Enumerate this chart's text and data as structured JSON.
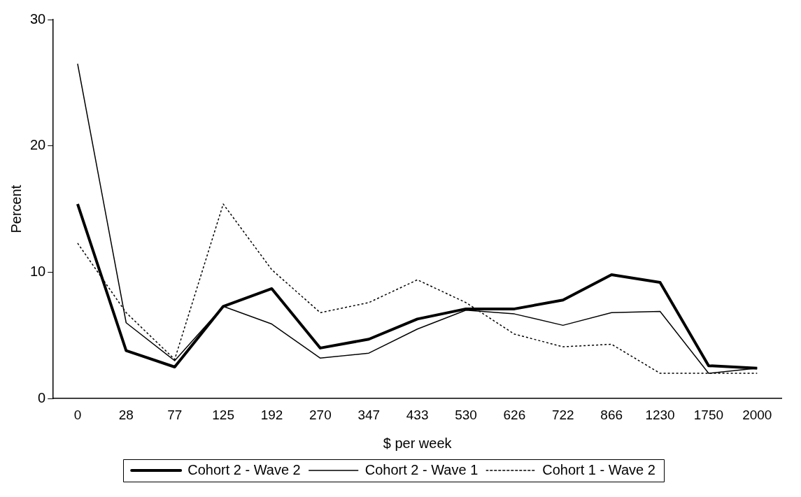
{
  "chart_data": {
    "type": "line",
    "xlabel": "$ per week",
    "ylabel": "Percent",
    "categories": [
      "0",
      "28",
      "77",
      "125",
      "192",
      "270",
      "347",
      "433",
      "530",
      "626",
      "722",
      "866",
      "1230",
      "1750",
      "2000"
    ],
    "ylim": [
      0,
      30
    ],
    "yticks": [
      0,
      10,
      20,
      30
    ],
    "grid": false,
    "legend": "bottom",
    "marker": "none",
    "series": [
      {
        "name": "Cohort 2 - Wave 2",
        "color": "#000000",
        "line_style": "solid",
        "values": [
          15.4,
          3.8,
          2.5,
          7.3,
          8.7,
          4.0,
          4.7,
          6.3,
          7.1,
          7.1,
          7.8,
          9.8,
          9.2,
          2.6,
          2.4
        ]
      },
      {
        "name": "Cohort 2 - Wave 1",
        "color": "#000000",
        "line_style": "solid",
        "values": [
          26.5,
          6.0,
          3.0,
          7.3,
          5.9,
          3.2,
          3.6,
          5.5,
          7.0,
          6.7,
          5.8,
          6.8,
          6.9,
          2.0,
          2.4
        ]
      },
      {
        "name": "Cohort 1 - Wave 2",
        "color": "#000000",
        "line_style": "dotted",
        "values": [
          12.3,
          6.8,
          3.1,
          15.4,
          10.2,
          6.8,
          7.6,
          9.4,
          7.6,
          5.1,
          4.1,
          4.3,
          2.0,
          2.0,
          2.0
        ]
      }
    ]
  }
}
